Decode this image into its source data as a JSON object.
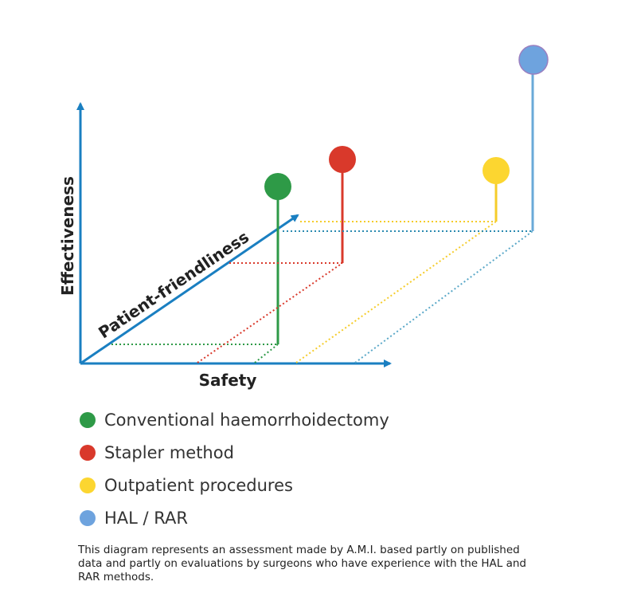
{
  "axes": {
    "y_label": "Effectiveness",
    "x_label": "Safety",
    "z_label": "Patient-friendliness"
  },
  "legend": [
    {
      "label": "Conventional haemorrhoidectomy"
    },
    {
      "label": "Stapler method"
    },
    {
      "label": "Outpatient procedures"
    },
    {
      "label": "HAL / RAR"
    }
  ],
  "caption": "This diagram represents an assessment made by A.M.I. based partly on published data and partly on evaluations by surgeons who have experience with the HAL and RAR methods."
}
